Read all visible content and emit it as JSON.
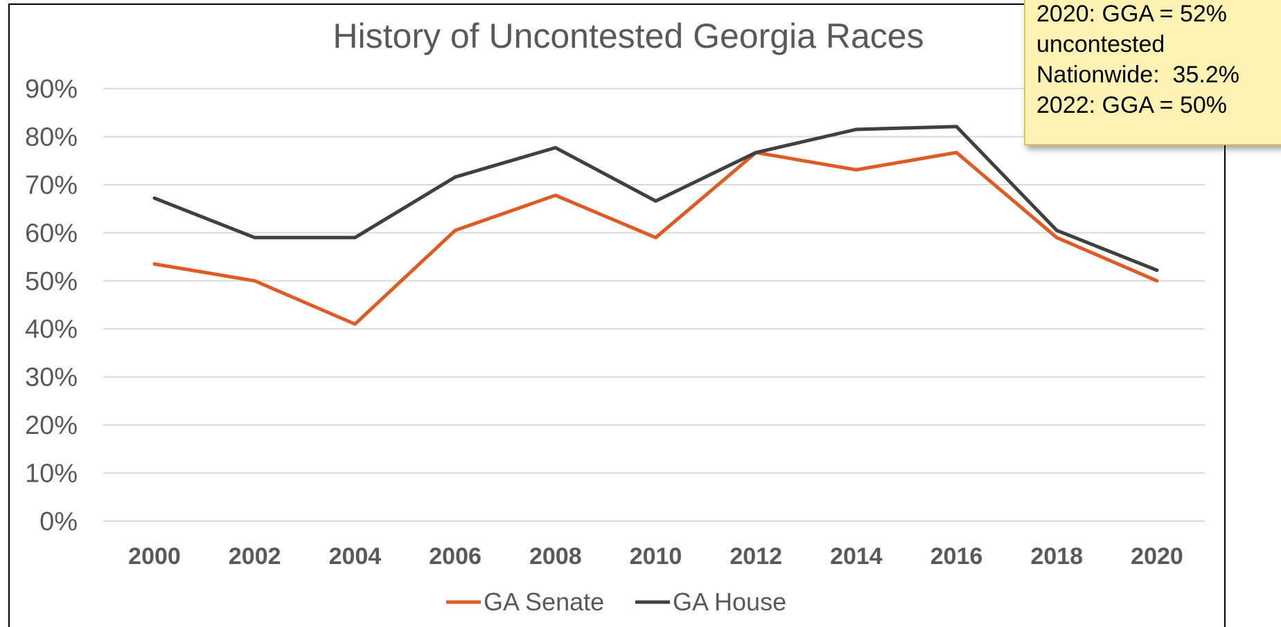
{
  "chart_data": {
    "type": "line",
    "title": "History of Uncontested Georgia Races",
    "categories": [
      "2000",
      "2002",
      "2004",
      "2006",
      "2008",
      "2010",
      "2012",
      "2014",
      "2016",
      "2018",
      "2020"
    ],
    "series": [
      {
        "name": "GA Senate",
        "color": "#e05a24",
        "values": [
          0.535,
          0.5,
          0.41,
          0.605,
          0.678,
          0.59,
          0.767,
          0.731,
          0.767,
          0.59,
          0.5
        ]
      },
      {
        "name": "GA House",
        "color": "#404040",
        "values": [
          0.672,
          0.59,
          0.59,
          0.716,
          0.777,
          0.666,
          0.767,
          0.815,
          0.821,
          0.605,
          0.522
        ]
      }
    ],
    "y_tick_labels": [
      "0%",
      "10%",
      "20%",
      "30%",
      "40%",
      "50%",
      "60%",
      "70%",
      "80%",
      "90%"
    ],
    "ylim": [
      0,
      0.9
    ],
    "y_format": "percent",
    "grid": true,
    "legend_position": "bottom"
  },
  "callout": {
    "lines": [
      "2020: GGA = 52%",
      "uncontested",
      "Nationwide:  35.2%",
      "2022: GGA = 50%"
    ]
  }
}
